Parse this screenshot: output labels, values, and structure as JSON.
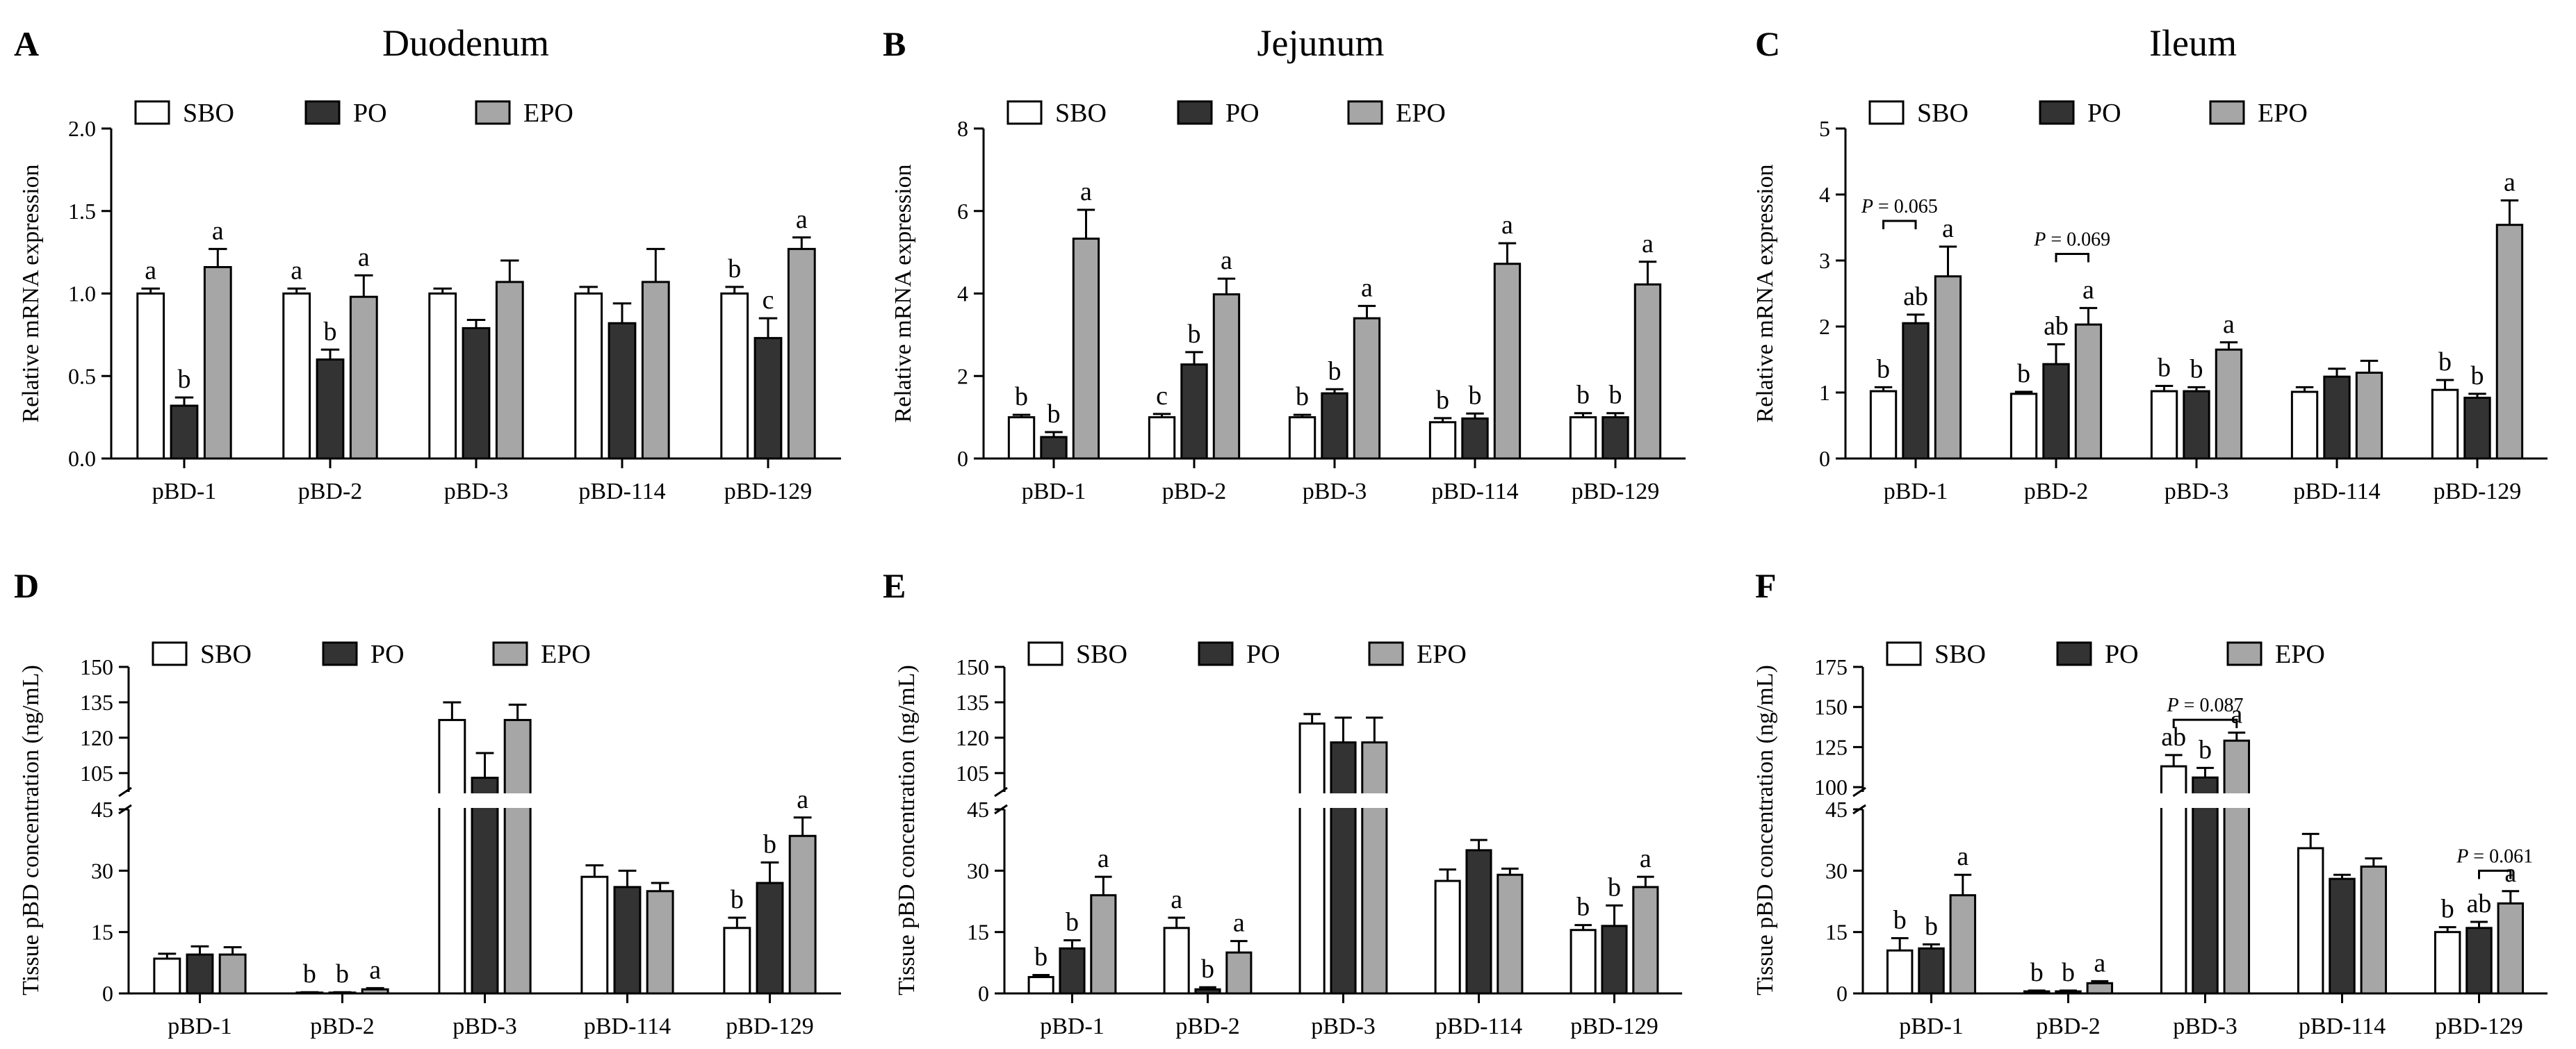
{
  "figure": {
    "colors": {
      "SBO": "#ffffff",
      "PO": "#333333",
      "EPO": "#a6a6a6",
      "stroke": "#000000"
    },
    "legend": [
      "SBO",
      "PO",
      "EPO"
    ]
  },
  "chart_data": [
    {
      "letter": "A",
      "title": "Duodenum",
      "type": "bar",
      "ylabel": "Relative mRNA expression",
      "ylim": [
        0,
        2.0
      ],
      "yticks": [
        "0.0",
        "0.5",
        "1.0",
        "1.5",
        "2.0"
      ],
      "categories": [
        "pBD-1",
        "pBD-2",
        "pBD-3",
        "pBD-114",
        "pBD-129"
      ],
      "series": [
        {
          "name": "SBO",
          "values": [
            1.0,
            1.0,
            1.0,
            1.0,
            1.0
          ],
          "errors": [
            0.03,
            0.03,
            0.03,
            0.04,
            0.04
          ],
          "labels": [
            "a",
            "a",
            "",
            "",
            "b"
          ]
        },
        {
          "name": "PO",
          "values": [
            0.32,
            0.6,
            0.79,
            0.82,
            0.73
          ],
          "errors": [
            0.05,
            0.06,
            0.05,
            0.12,
            0.12
          ],
          "labels": [
            "b",
            "b",
            "",
            "",
            "c"
          ]
        },
        {
          "name": "EPO",
          "values": [
            1.16,
            0.98,
            1.07,
            1.07,
            1.27
          ],
          "errors": [
            0.11,
            0.13,
            0.13,
            0.2,
            0.07
          ],
          "labels": [
            "a",
            "a",
            "",
            "",
            "a"
          ]
        }
      ],
      "annotations": []
    },
    {
      "letter": "B",
      "title": "Jejunum",
      "type": "bar",
      "ylabel": "Relative mRNA expression",
      "ylim": [
        0,
        8
      ],
      "yticks": [
        "0",
        "2",
        "4",
        "6",
        "8"
      ],
      "categories": [
        "pBD-1",
        "pBD-2",
        "pBD-3",
        "pBD-114",
        "pBD-129"
      ],
      "series": [
        {
          "name": "SBO",
          "values": [
            1.0,
            1.0,
            1.0,
            0.88,
            1.0
          ],
          "errors": [
            0.06,
            0.08,
            0.06,
            0.1,
            0.1
          ],
          "labels": [
            "b",
            "c",
            "b",
            "b",
            "b"
          ]
        },
        {
          "name": "PO",
          "values": [
            0.52,
            2.28,
            1.58,
            0.97,
            1.0
          ],
          "errors": [
            0.12,
            0.3,
            0.1,
            0.12,
            0.1
          ],
          "labels": [
            "b",
            "b",
            "b",
            "b",
            "b"
          ]
        },
        {
          "name": "EPO",
          "values": [
            5.33,
            3.98,
            3.4,
            4.72,
            4.22
          ],
          "errors": [
            0.7,
            0.38,
            0.3,
            0.5,
            0.55
          ],
          "labels": [
            "a",
            "a",
            "a",
            "a",
            "a"
          ]
        }
      ],
      "annotations": []
    },
    {
      "letter": "C",
      "title": "Ileum",
      "type": "bar",
      "ylabel": "Relative mRNA expression",
      "ylim": [
        0,
        5
      ],
      "yticks": [
        "0",
        "1",
        "2",
        "3",
        "4",
        "5"
      ],
      "categories": [
        "pBD-1",
        "pBD-2",
        "pBD-3",
        "pBD-114",
        "pBD-129"
      ],
      "series": [
        {
          "name": "SBO",
          "values": [
            1.02,
            0.98,
            1.02,
            1.01,
            1.04
          ],
          "errors": [
            0.06,
            0.03,
            0.08,
            0.07,
            0.15
          ],
          "labels": [
            "b",
            "b",
            "b",
            "",
            "b"
          ]
        },
        {
          "name": "PO",
          "values": [
            2.05,
            1.43,
            1.02,
            1.24,
            0.92
          ],
          "errors": [
            0.13,
            0.3,
            0.06,
            0.12,
            0.06
          ],
          "labels": [
            "ab",
            "ab",
            "b",
            "",
            "b"
          ]
        },
        {
          "name": "EPO",
          "values": [
            2.76,
            2.03,
            1.65,
            1.3,
            3.54
          ],
          "errors": [
            0.45,
            0.25,
            0.11,
            0.18,
            0.37
          ],
          "labels": [
            "a",
            "a",
            "a",
            "",
            "a"
          ]
        }
      ],
      "annotations": [
        {
          "text": "P = 0.065",
          "category": 0,
          "from": "SBO",
          "to": "PO",
          "y": 3.6
        },
        {
          "text": "P = 0.069",
          "category": 1,
          "from": "PO",
          "to": "EPO",
          "y": 3.1
        }
      ]
    },
    {
      "letter": "D",
      "title": "",
      "type": "bar",
      "broken_axis": true,
      "ylabel": "Tissue pBD concentration (ng/mL)",
      "lower": {
        "ylim": [
          0,
          45
        ],
        "yticks": [
          "0",
          "15",
          "30",
          "45"
        ]
      },
      "upper": {
        "ylim": [
          97,
          150
        ],
        "yticks": [
          "105",
          "120",
          "135",
          "150"
        ]
      },
      "categories": [
        "pBD-1",
        "pBD-2",
        "pBD-3",
        "pBD-114",
        "pBD-129"
      ],
      "series": [
        {
          "name": "SBO",
          "values": [
            8.5,
            0.2,
            127.5,
            28.5,
            16
          ],
          "errors": [
            1.2,
            0.1,
            7.5,
            2.8,
            2.5
          ],
          "labels": [
            "",
            "b",
            "",
            "",
            "b"
          ]
        },
        {
          "name": "PO",
          "values": [
            9.5,
            0.2,
            103,
            26,
            27
          ],
          "errors": [
            2,
            0.1,
            10.5,
            4,
            5
          ],
          "labels": [
            "",
            "b",
            "",
            "",
            "b"
          ]
        },
        {
          "name": "EPO",
          "values": [
            9.5,
            1.0,
            127.5,
            25,
            38.5
          ],
          "errors": [
            1.8,
            0.3,
            6.5,
            2,
            4.5
          ],
          "labels": [
            "",
            "a",
            "",
            "",
            "a"
          ]
        }
      ],
      "annotations": []
    },
    {
      "letter": "E",
      "title": "",
      "type": "bar",
      "broken_axis": true,
      "ylabel": "Tissue pBD concentration (ng/mL)",
      "lower": {
        "ylim": [
          0,
          45
        ],
        "yticks": [
          "0",
          "15",
          "30",
          "45"
        ]
      },
      "upper": {
        "ylim": [
          97,
          150
        ],
        "yticks": [
          "105",
          "120",
          "135",
          "150"
        ]
      },
      "categories": [
        "pBD-1",
        "pBD-2",
        "pBD-3",
        "pBD-114",
        "pBD-129"
      ],
      "series": [
        {
          "name": "SBO",
          "values": [
            4,
            16,
            126,
            27.5,
            15.5
          ],
          "errors": [
            0.5,
            2.5,
            4,
            2.8,
            1.2
          ],
          "labels": [
            "b",
            "a",
            "",
            "",
            "b"
          ]
        },
        {
          "name": "PO",
          "values": [
            11,
            1,
            118,
            35,
            16.5
          ],
          "errors": [
            2,
            0.5,
            10.5,
            2.5,
            5
          ],
          "labels": [
            "b",
            "b",
            "",
            "",
            "b"
          ]
        },
        {
          "name": "EPO",
          "values": [
            24,
            10,
            118,
            29,
            26
          ],
          "errors": [
            4.5,
            2.8,
            10.5,
            1.5,
            2.5
          ],
          "labels": [
            "a",
            "a",
            "",
            "",
            "a"
          ]
        }
      ],
      "annotations": []
    },
    {
      "letter": "F",
      "title": "",
      "type": "bar",
      "broken_axis": true,
      "ylabel": "Tissue pBD concentration (ng/mL)",
      "lower": {
        "ylim": [
          0,
          45
        ],
        "yticks": [
          "0",
          "15",
          "30",
          "45"
        ]
      },
      "upper": {
        "ylim": [
          97,
          175
        ],
        "yticks": [
          "100",
          "125",
          "150",
          "175"
        ]
      },
      "categories": [
        "pBD-1",
        "pBD-2",
        "pBD-3",
        "pBD-114",
        "pBD-129"
      ],
      "series": [
        {
          "name": "SBO",
          "values": [
            10.5,
            0.5,
            113,
            35.5,
            15
          ],
          "errors": [
            3,
            0.2,
            7,
            3.5,
            1.2
          ],
          "labels": [
            "b",
            "b",
            "ab",
            "",
            "b"
          ]
        },
        {
          "name": "PO",
          "values": [
            11,
            0.5,
            106,
            28,
            16
          ],
          "errors": [
            1,
            0.2,
            6,
            1,
            1.5
          ],
          "labels": [
            "b",
            "b",
            "b",
            "",
            "ab"
          ]
        },
        {
          "name": "EPO",
          "values": [
            24,
            2.5,
            129,
            31,
            22
          ],
          "errors": [
            5,
            0.5,
            5,
            2,
            3
          ],
          "labels": [
            "a",
            "a",
            "a",
            "",
            "a"
          ]
        }
      ],
      "annotations": [
        {
          "text": "P = 0.087",
          "category": 2,
          "from": "SBO",
          "to": "EPO",
          "y": 142
        },
        {
          "text": "P = 0.061",
          "category": 4,
          "from": "PO",
          "to": "EPO",
          "y": 30
        }
      ]
    }
  ]
}
